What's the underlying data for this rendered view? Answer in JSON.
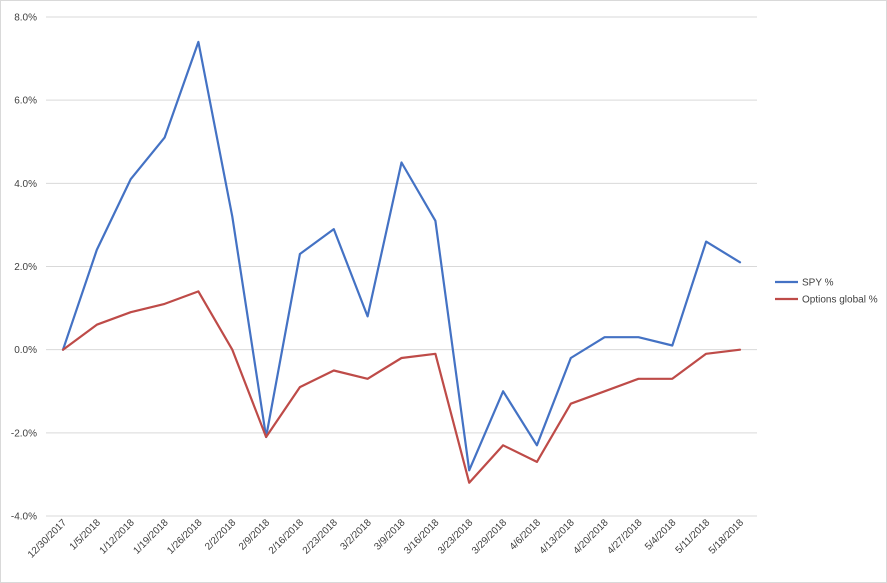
{
  "chart_data": {
    "type": "line",
    "title": "",
    "xlabel": "",
    "ylabel": "",
    "categories": [
      "12/30/2017",
      "1/5/2018",
      "1/12/2018",
      "1/19/2018",
      "1/26/2018",
      "2/2/2018",
      "2/9/2018",
      "2/16/2018",
      "2/23/2018",
      "3/2/2018",
      "3/9/2018",
      "3/16/2018",
      "3/23/2018",
      "3/29/2018",
      "4/6/2018",
      "4/13/2018",
      "4/20/2018",
      "4/27/2018",
      "5/4/2018",
      "5/11/2018",
      "5/18/2018"
    ],
    "ylim": [
      -4.0,
      8.0
    ],
    "yticks": [
      "-4.0%",
      "-2.0%",
      "0.0%",
      "2.0%",
      "4.0%",
      "6.0%",
      "8.0%"
    ],
    "ytick_values": [
      -4,
      -2,
      0,
      2,
      4,
      6,
      8
    ],
    "grid": true,
    "legend_position": "right",
    "series": [
      {
        "name": "SPY %",
        "color": "#4472c4",
        "values": [
          0.0,
          2.4,
          4.1,
          5.1,
          7.4,
          3.2,
          -2.1,
          2.3,
          2.9,
          0.8,
          4.5,
          3.1,
          -2.9,
          -1.0,
          -2.3,
          -0.2,
          0.3,
          0.3,
          0.1,
          2.6,
          2.1
        ]
      },
      {
        "name": "Options global %",
        "color": "#be4b48",
        "values": [
          0.0,
          0.6,
          0.9,
          1.1,
          1.4,
          0.0,
          -2.1,
          -0.9,
          -0.5,
          -0.7,
          -0.2,
          -0.1,
          -3.2,
          -2.3,
          -2.7,
          -1.3,
          -1.0,
          -0.7,
          -0.7,
          -0.1,
          0.0
        ]
      }
    ]
  }
}
